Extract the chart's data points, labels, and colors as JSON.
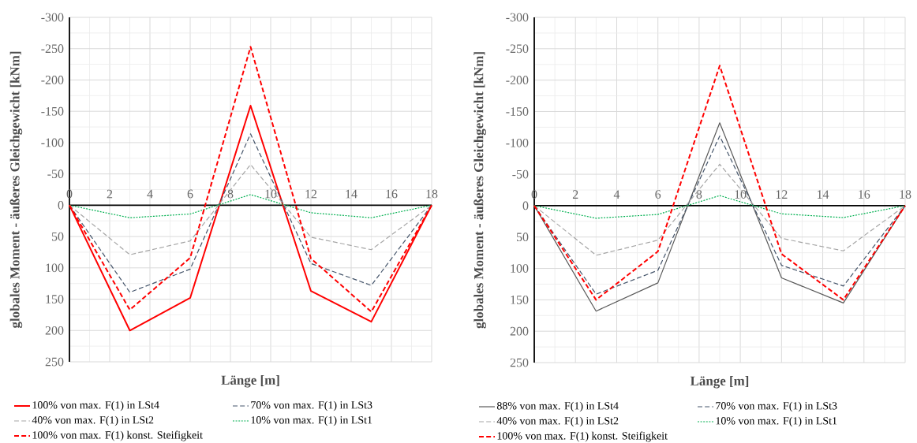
{
  "chart_data": [
    {
      "type": "line",
      "xlabel": "Länge [m]",
      "ylabel": "globales Moment - äußeres Gleichgewicht [kNm]",
      "x": [
        0,
        3,
        6,
        9,
        12,
        15,
        18
      ],
      "xlim": [
        0,
        18
      ],
      "xticks": [
        0,
        2,
        4,
        6,
        8,
        10,
        12,
        14,
        16,
        18
      ],
      "ylim": [
        250,
        -300
      ],
      "yticks": [
        -300,
        -250,
        -200,
        -150,
        -100,
        -50,
        0,
        50,
        100,
        150,
        200,
        250
      ],
      "grid": true,
      "legend": "bottom",
      "marker": "none",
      "series": [
        {
          "name": "100% von max. F(1) in LSt4",
          "color": "#ff0000",
          "line_style": "solid",
          "values": [
            0,
            200,
            148,
            -159,
            137,
            186,
            0
          ]
        },
        {
          "name": "70% von max. F(1) in LSt3",
          "color": "#44546a",
          "line_style": "dashed",
          "values": [
            0,
            139,
            102,
            -114,
            93,
            128,
            0
          ]
        },
        {
          "name": "40% von max. F(1) in LSt2",
          "color": "#a5a5a5",
          "line_style": "dashed",
          "values": [
            0,
            79,
            57,
            -65,
            51,
            71,
            0
          ]
        },
        {
          "name": "10% von max. F(1) in LSt1",
          "color": "#00b050",
          "line_style": "dotted",
          "values": [
            0,
            20,
            14,
            -17,
            12,
            20,
            0
          ]
        },
        {
          "name": "100% von max. F(1) konst. Steifigkeit",
          "color": "#ff0000",
          "line_style": "dashed",
          "values": [
            0,
            167,
            84,
            -253,
            85,
            170,
            0
          ]
        }
      ]
    },
    {
      "type": "line",
      "xlabel": "Länge [m]",
      "ylabel": "globales Moment - äußeres Gleichgewicht [kNm]",
      "x": [
        0,
        3,
        6,
        9,
        12,
        15,
        18
      ],
      "xlim": [
        0,
        18
      ],
      "xticks": [
        0,
        2,
        4,
        6,
        8,
        10,
        12,
        14,
        16,
        18
      ],
      "ylim": [
        250,
        -300
      ],
      "yticks": [
        -300,
        -250,
        -200,
        -150,
        -100,
        -50,
        0,
        50,
        100,
        150,
        200,
        250
      ],
      "grid": true,
      "legend": "bottom",
      "marker": "none",
      "series": [
        {
          "name": "88% von max. F(1) in LSt4",
          "color": "#595959",
          "line_style": "solid",
          "values": [
            0,
            168,
            123,
            -132,
            115,
            155,
            0
          ]
        },
        {
          "name": "70% von max. F(1) in LSt3",
          "color": "#44546a",
          "line_style": "dashed",
          "values": [
            0,
            141,
            103,
            -111,
            95,
            128,
            0
          ]
        },
        {
          "name": "40% von max. F(1) in LSt2",
          "color": "#a5a5a5",
          "line_style": "dashed",
          "values": [
            0,
            79,
            55,
            -66,
            52,
            72,
            0
          ]
        },
        {
          "name": "10% von max. F(1) in LSt1",
          "color": "#00b050",
          "line_style": "dotted",
          "values": [
            0,
            20,
            14,
            -16,
            13,
            19,
            0
          ]
        },
        {
          "name": "100% von max. F(1) konst. Steifigkeit",
          "color": "#ff0000",
          "line_style": "dashed",
          "values": [
            0,
            150,
            73,
            -223,
            77,
            150,
            0
          ]
        }
      ]
    }
  ]
}
